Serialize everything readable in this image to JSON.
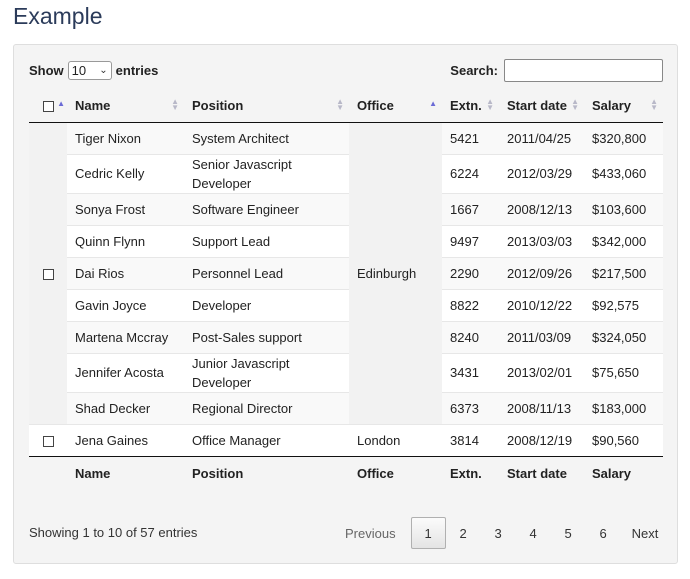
{
  "page": {
    "title": "Example"
  },
  "controls": {
    "show_label": "Show",
    "length_value": "10",
    "entries_label": "entries",
    "search_label": "Search:",
    "search_value": ""
  },
  "columns": [
    "Name",
    "Position",
    "Office",
    "Extn.",
    "Start date",
    "Salary"
  ],
  "rows": [
    {
      "name": "Tiger Nixon",
      "position": "System Architect",
      "extn": "5421",
      "start": "2011/04/25",
      "salary": "$320,800"
    },
    {
      "name": "Cedric Kelly",
      "position_lines": [
        "Senior Javascript",
        "Developer"
      ],
      "extn": "6224",
      "start": "2012/03/29",
      "salary": "$433,060"
    },
    {
      "name": "Sonya Frost",
      "position": "Software Engineer",
      "extn": "1667",
      "start": "2008/12/13",
      "salary": "$103,600"
    },
    {
      "name": "Quinn Flynn",
      "position": "Support Lead",
      "extn": "9497",
      "start": "2013/03/03",
      "salary": "$342,000"
    },
    {
      "name": "Dai Rios",
      "position": "Personnel Lead",
      "extn": "2290",
      "start": "2012/09/26",
      "salary": "$217,500"
    },
    {
      "name": "Gavin Joyce",
      "position": "Developer",
      "extn": "8822",
      "start": "2010/12/22",
      "salary": "$92,575"
    },
    {
      "name": "Martena Mccray",
      "position": "Post-Sales support",
      "extn": "8240",
      "start": "2011/03/09",
      "salary": "$324,050"
    },
    {
      "name": "Jennifer Acosta",
      "position_lines": [
        "Junior Javascript",
        "Developer"
      ],
      "extn": "3431",
      "start": "2013/02/01",
      "salary": "$75,650"
    },
    {
      "name": "Shad Decker",
      "position": "Regional Director",
      "extn": "6373",
      "start": "2008/11/13",
      "salary": "$183,000"
    },
    {
      "name": "Jena Gaines",
      "position": "Office Manager",
      "office": "London",
      "extn": "3814",
      "start": "2008/12/19",
      "salary": "$90,560"
    }
  ],
  "group_office": "Edinburgh",
  "footer": {
    "info": "Showing 1 to 10 of 57 entries",
    "previous": "Previous",
    "pages": [
      "1",
      "2",
      "3",
      "4",
      "5",
      "6"
    ],
    "next": "Next"
  },
  "colors": {
    "title": "#2b3b5a",
    "sort_active": "#6b6bd6",
    "panel_bg": "#f4f4f4"
  }
}
